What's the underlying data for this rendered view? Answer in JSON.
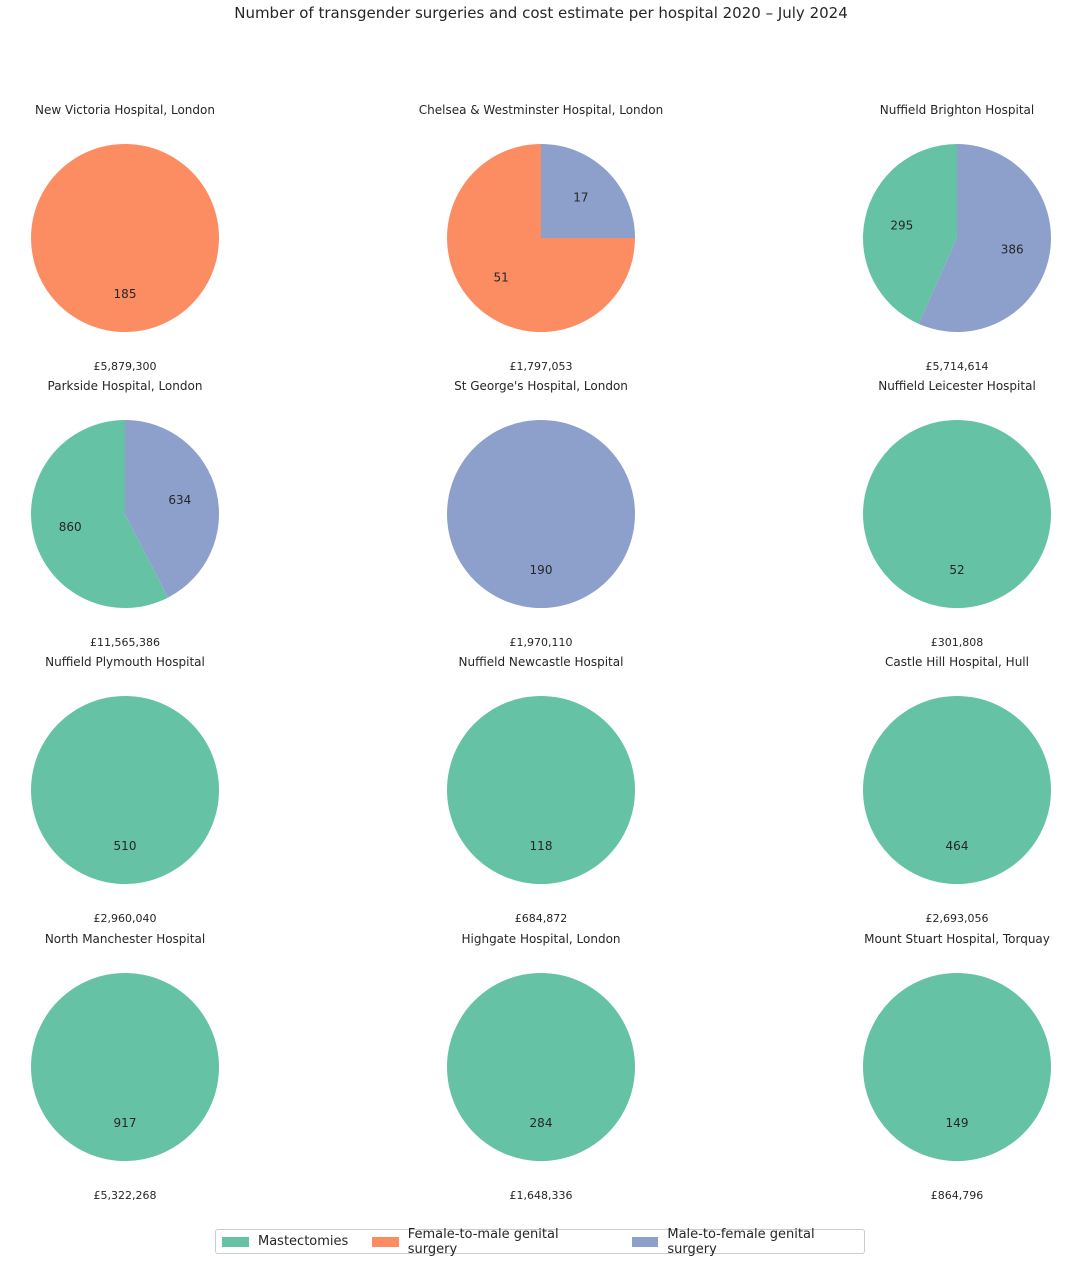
{
  "chart_data": {
    "type": "pie",
    "title": "Number of transgender surgeries and cost estimate per hospital 2020 – July 2024",
    "categories": [
      "Mastectomies",
      "Female-to-male genital surgery",
      "Male-to-female genital surgery"
    ],
    "colors": [
      "#66c2a5",
      "#fc8d62",
      "#8da0cb"
    ],
    "legend_position": "bottom-center",
    "hospitals": [
      {
        "name": "New Victoria Hospital, London",
        "values": [
          0,
          185,
          0
        ],
        "cost": "£5,879,300"
      },
      {
        "name": "Chelsea & Westminster Hospital, London",
        "values": [
          0,
          51,
          17
        ],
        "cost": "£1,797,053"
      },
      {
        "name": "Nuffield Brighton Hospital",
        "values": [
          295,
          0,
          386
        ],
        "cost": "£5,714,614"
      },
      {
        "name": "Parkside Hospital, London",
        "values": [
          860,
          0,
          634
        ],
        "cost": "£11,565,386"
      },
      {
        "name": "St George's Hospital, London",
        "values": [
          0,
          0,
          190
        ],
        "cost": "£1,970,110"
      },
      {
        "name": "Nuffield Leicester Hospital",
        "values": [
          52,
          0,
          0
        ],
        "cost": "£301,808"
      },
      {
        "name": "Nuffield Plymouth Hospital",
        "values": [
          510,
          0,
          0
        ],
        "cost": "£2,960,040"
      },
      {
        "name": "Nuffield Newcastle Hospital",
        "values": [
          118,
          0,
          0
        ],
        "cost": "£684,872"
      },
      {
        "name": "Castle Hill Hospital, Hull",
        "values": [
          464,
          0,
          0
        ],
        "cost": "£2,693,056"
      },
      {
        "name": "North Manchester Hospital",
        "values": [
          917,
          0,
          0
        ],
        "cost": "£5,322,268"
      },
      {
        "name": "Highgate Hospital, London",
        "values": [
          284,
          0,
          0
        ],
        "cost": "£1,648,336"
      },
      {
        "name": "Mount Stuart Hospital, Torquay",
        "values": [
          149,
          0,
          0
        ],
        "cost": "£864,796"
      }
    ]
  },
  "legend": {
    "items": [
      {
        "label": "Mastectomies",
        "color": "#66c2a5"
      },
      {
        "label": "Female-to-male genital surgery",
        "color": "#fc8d62"
      },
      {
        "label": "Male-to-female genital surgery",
        "color": "#8da0cb"
      }
    ]
  }
}
